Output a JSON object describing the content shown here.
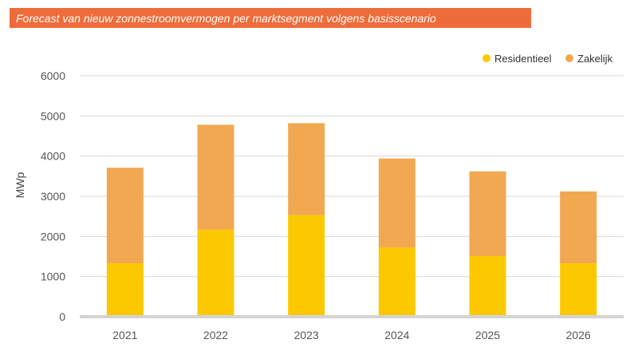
{
  "title": "Forecast van nieuw zonnestroomvermogen per marktsegment volgens basisscenario",
  "chart_data": {
    "type": "bar",
    "stacked": true,
    "categories": [
      "2021",
      "2022",
      "2023",
      "2024",
      "2025",
      "2026"
    ],
    "series": [
      {
        "name": "Residentieel",
        "color": "#fcc900",
        "values": [
          1330,
          2170,
          2530,
          1720,
          1510,
          1330
        ]
      },
      {
        "name": "Zakelijk",
        "color": "#f2a851",
        "values": [
          2380,
          2610,
          2290,
          2220,
          2110,
          1790
        ]
      }
    ],
    "ylabel": "MWp",
    "ylim": [
      0,
      6000
    ],
    "yticks": [
      0,
      1000,
      2000,
      3000,
      4000,
      5000,
      6000
    ],
    "grid": true,
    "legend_position": "top-right"
  }
}
